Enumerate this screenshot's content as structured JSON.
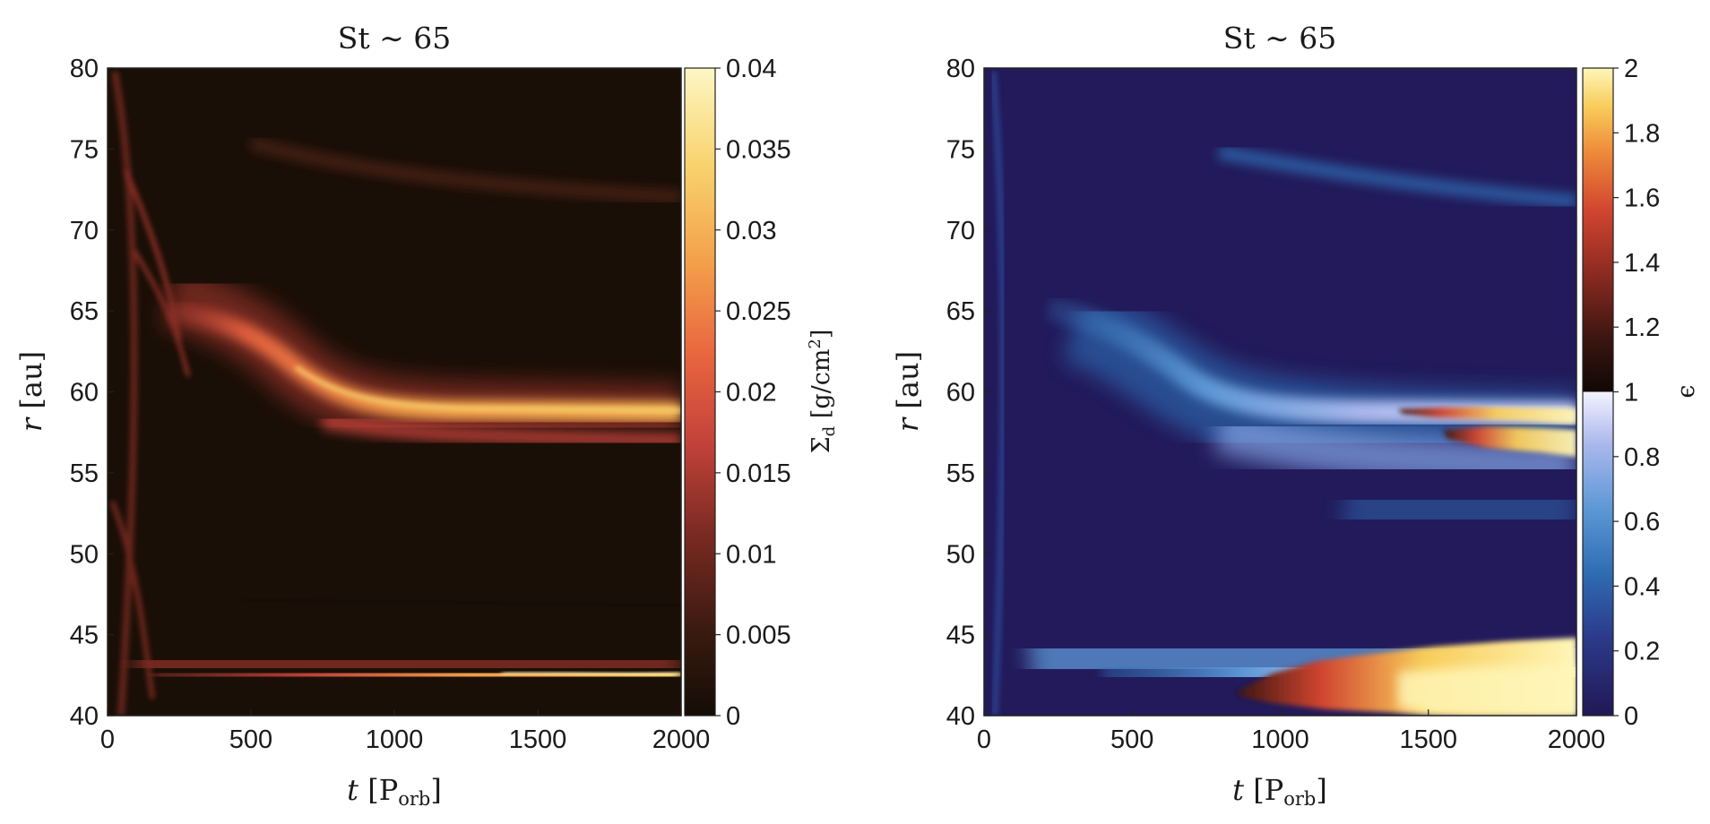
{
  "chart_data": [
    {
      "type": "heatmap",
      "title": "St ∼ 65",
      "xlabel": "t [P_orb]",
      "ylabel": "r [au]",
      "xlim": [
        0,
        2000
      ],
      "ylim": [
        40,
        80
      ],
      "xticks": [
        "0",
        "500",
        "1000",
        "1500",
        "2000"
      ],
      "yticks": [
        "40",
        "45",
        "50",
        "55",
        "60",
        "65",
        "70",
        "75",
        "80"
      ],
      "colorbar": {
        "label": "Σ_d [g/cm²]",
        "range": [
          0,
          0.04
        ],
        "ticks": [
          "0",
          "0.005",
          "0.01",
          "0.015",
          "0.02",
          "0.025",
          "0.03",
          "0.035",
          "0.04"
        ],
        "colormap": [
          "#140d06",
          "#3a1a10",
          "#7a2a22",
          "#c2423a",
          "#e8633f",
          "#f3a04a",
          "#f8d36d",
          "#fdf7c4"
        ]
      },
      "features": [
        {
          "r_start": 65,
          "r_end": 58.5,
          "t_start": 250,
          "t_end": 2000,
          "peak": 0.035,
          "desc": "outer ring, migrates inward then settles"
        },
        {
          "r": 42,
          "t_start": 150,
          "t_end": 2000,
          "peak": 0.038,
          "desc": "inner ring with oscillations"
        },
        {
          "r": 71.5,
          "t_start": 600,
          "t_end": 2000,
          "peak": 0.005,
          "desc": "faint outer band"
        }
      ]
    },
    {
      "type": "heatmap",
      "title": "St ∼ 65",
      "xlabel": "t [P_orb]",
      "ylabel": "r [au]",
      "xlim": [
        0,
        2000
      ],
      "ylim": [
        40,
        80
      ],
      "xticks": [
        "0",
        "500",
        "1000",
        "1500",
        "2000"
      ],
      "yticks": [
        "40",
        "45",
        "50",
        "55",
        "60",
        "65",
        "70",
        "75",
        "80"
      ],
      "colorbar": {
        "label": "ϵ",
        "range": [
          0,
          2
        ],
        "ticks": [
          "0",
          "0.2",
          "0.4",
          "0.6",
          "0.8",
          "1",
          "1.2",
          "1.4",
          "1.6",
          "1.8",
          "2"
        ],
        "colormap_below_1": [
          "#221855",
          "#2b3a8a",
          "#2f6cb2",
          "#5d98d6",
          "#aab8ec",
          "#f2f2ff"
        ],
        "colormap_above_1": [
          "#110804",
          "#3a1510",
          "#8a2a20",
          "#d14530",
          "#ee8a3a",
          "#f8cc5a",
          "#fff6b8"
        ]
      },
      "features": [
        {
          "r_start": 65,
          "r_end": 58.5,
          "t_start": 250,
          "t_end": 2000,
          "peak": 1.9,
          "desc": "outer ring, ϵ > 1 after t≈1200"
        },
        {
          "r": 42.5,
          "t_start": 200,
          "t_end": 2000,
          "peak": 2.0,
          "desc": "inner ring, ϵ > 1 after t≈850"
        }
      ]
    }
  ]
}
